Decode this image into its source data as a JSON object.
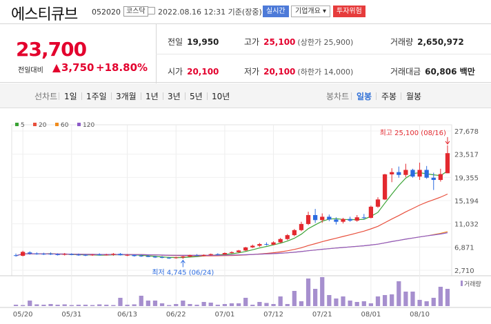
{
  "header": {
    "name": "에스티큐브",
    "code": "052020",
    "market": "코스닥",
    "datetime": "2022.08.16 12:31 기준(장중)",
    "realtime_label": "실시간",
    "company_label": "기업개요 ▾",
    "warning_label": "투자위험"
  },
  "quote": {
    "price": "23,700",
    "change_label": "전일대비",
    "change": "3,750",
    "change_pct": "+18.80%",
    "prev_label": "전일",
    "prev": "19,950",
    "high_label": "고가",
    "high": "25,100",
    "upper_limit": "(상한가 25,900)",
    "volume_label": "거래량",
    "volume": "2,650,972",
    "open_label": "시가",
    "open": "20,100",
    "low_label": "저가",
    "low": "20,100",
    "lower_limit": "(하한가 14,000)",
    "amount_label": "거래대금",
    "amount": "60,806 백만"
  },
  "tabs": {
    "line_label": "선차트",
    "periods": [
      "1일",
      "1주일",
      "3개월",
      "1년",
      "3년",
      "5년",
      "10년"
    ],
    "candle_label": "봉차트",
    "candle_periods": [
      "일봉",
      "주봉",
      "월봉"
    ],
    "selected": "일봉"
  },
  "chart_data": {
    "type": "candlestick",
    "legend": [
      {
        "name": "5",
        "color": "#3aa335"
      },
      {
        "name": "20",
        "color": "#e84f3c"
      },
      {
        "name": "60",
        "color": "#f08c1e"
      },
      {
        "name": "120",
        "color": "#8c5ac8"
      }
    ],
    "y_ticks": [
      "27,678",
      "23,517",
      "19,355",
      "15,194",
      "11,032",
      "6,871",
      "2,710"
    ],
    "ylim": [
      2710,
      27678
    ],
    "x_labels": [
      {
        "label": "05/20",
        "idx": 1
      },
      {
        "label": "05/31",
        "idx": 8
      },
      {
        "label": "06/13",
        "idx": 16
      },
      {
        "label": "06/22",
        "idx": 23
      },
      {
        "label": "07/01",
        "idx": 30
      },
      {
        "label": "07/12",
        "idx": 37
      },
      {
        "label": "07/21",
        "idx": 44
      },
      {
        "label": "08/01",
        "idx": 51
      },
      {
        "label": "08/10",
        "idx": 58
      }
    ],
    "annotations": {
      "high": {
        "text": "최고 25,100 (08/16)",
        "idx": 62,
        "value": 25100
      },
      "low": {
        "text": "최저 4,745 (06/24)",
        "idx": 24,
        "value": 4745
      }
    },
    "volume_label": "거래량",
    "candles": [
      {
        "o": 5400,
        "h": 5700,
        "l": 5150,
        "c": 5300
      },
      {
        "o": 5300,
        "h": 6200,
        "l": 5200,
        "c": 6000
      },
      {
        "o": 5900,
        "h": 6100,
        "l": 5500,
        "c": 5700
      },
      {
        "o": 5700,
        "h": 5900,
        "l": 5500,
        "c": 5650
      },
      {
        "o": 5650,
        "h": 5850,
        "l": 5450,
        "c": 5600
      },
      {
        "o": 5650,
        "h": 5900,
        "l": 5450,
        "c": 5550
      },
      {
        "o": 5550,
        "h": 5750,
        "l": 5350,
        "c": 5500
      },
      {
        "o": 5500,
        "h": 5800,
        "l": 5350,
        "c": 5600
      },
      {
        "o": 5600,
        "h": 5750,
        "l": 5400,
        "c": 5450
      },
      {
        "o": 5500,
        "h": 5700,
        "l": 5300,
        "c": 5400
      },
      {
        "o": 5450,
        "h": 5600,
        "l": 5250,
        "c": 5350
      },
      {
        "o": 5400,
        "h": 5600,
        "l": 5300,
        "c": 5500
      },
      {
        "o": 5550,
        "h": 5750,
        "l": 5350,
        "c": 5400
      },
      {
        "o": 5450,
        "h": 5650,
        "l": 5350,
        "c": 5500
      },
      {
        "o": 5500,
        "h": 5800,
        "l": 5300,
        "c": 5650
      },
      {
        "o": 5650,
        "h": 5800,
        "l": 5350,
        "c": 5400
      },
      {
        "o": 5400,
        "h": 5600,
        "l": 5250,
        "c": 5450
      },
      {
        "o": 5450,
        "h": 5500,
        "l": 5150,
        "c": 5250
      },
      {
        "o": 5300,
        "h": 5500,
        "l": 5100,
        "c": 5200
      },
      {
        "o": 5250,
        "h": 5450,
        "l": 5050,
        "c": 5100
      },
      {
        "o": 5150,
        "h": 5300,
        "l": 4900,
        "c": 5000
      },
      {
        "o": 5050,
        "h": 5250,
        "l": 4850,
        "c": 4950
      },
      {
        "o": 4950,
        "h": 5100,
        "l": 4750,
        "c": 4850
      },
      {
        "o": 4900,
        "h": 5100,
        "l": 4780,
        "c": 5000
      },
      {
        "o": 5000,
        "h": 5250,
        "l": 4745,
        "c": 5150
      },
      {
        "o": 5150,
        "h": 5500,
        "l": 5050,
        "c": 5400
      },
      {
        "o": 5400,
        "h": 5600,
        "l": 5250,
        "c": 5350
      },
      {
        "o": 5350,
        "h": 5550,
        "l": 5200,
        "c": 5450
      },
      {
        "o": 5450,
        "h": 5700,
        "l": 5350,
        "c": 5600
      },
      {
        "o": 5600,
        "h": 5750,
        "l": 5400,
        "c": 5550
      },
      {
        "o": 5550,
        "h": 5900,
        "l": 5500,
        "c": 5800
      },
      {
        "o": 5800,
        "h": 6100,
        "l": 5700,
        "c": 5950
      },
      {
        "o": 5950,
        "h": 6350,
        "l": 5850,
        "c": 6250
      },
      {
        "o": 6250,
        "h": 6900,
        "l": 6150,
        "c": 6800
      },
      {
        "o": 6800,
        "h": 7300,
        "l": 6700,
        "c": 7100
      },
      {
        "o": 7100,
        "h": 7600,
        "l": 6900,
        "c": 7400
      },
      {
        "o": 7400,
        "h": 7700,
        "l": 7150,
        "c": 7300
      },
      {
        "o": 7300,
        "h": 7900,
        "l": 7200,
        "c": 7700
      },
      {
        "o": 7700,
        "h": 8500,
        "l": 7600,
        "c": 8300
      },
      {
        "o": 8300,
        "h": 9200,
        "l": 8100,
        "c": 9000
      },
      {
        "o": 9000,
        "h": 10100,
        "l": 8800,
        "c": 9900
      },
      {
        "o": 9900,
        "h": 11400,
        "l": 9700,
        "c": 11000
      },
      {
        "o": 11000,
        "h": 13200,
        "l": 10800,
        "c": 12600
      },
      {
        "o": 12600,
        "h": 13700,
        "l": 11200,
        "c": 11700
      },
      {
        "o": 11700,
        "h": 12900,
        "l": 11200,
        "c": 12300
      },
      {
        "o": 12300,
        "h": 12700,
        "l": 11500,
        "c": 11800
      },
      {
        "o": 11800,
        "h": 12200,
        "l": 10900,
        "c": 11400
      },
      {
        "o": 11400,
        "h": 12100,
        "l": 11100,
        "c": 11900
      },
      {
        "o": 11900,
        "h": 12300,
        "l": 11400,
        "c": 11600
      },
      {
        "o": 11600,
        "h": 12600,
        "l": 11400,
        "c": 12200
      },
      {
        "o": 12200,
        "h": 12800,
        "l": 11800,
        "c": 12100
      },
      {
        "o": 12100,
        "h": 14300,
        "l": 12000,
        "c": 14100
      },
      {
        "o": 14100,
        "h": 15800,
        "l": 13900,
        "c": 15400
      },
      {
        "o": 15400,
        "h": 20000,
        "l": 15300,
        "c": 19900
      },
      {
        "o": 19900,
        "h": 21000,
        "l": 18500,
        "c": 20300
      },
      {
        "o": 20300,
        "h": 21300,
        "l": 19300,
        "c": 19800
      },
      {
        "o": 19800,
        "h": 21800,
        "l": 19400,
        "c": 20700
      },
      {
        "o": 20700,
        "h": 20900,
        "l": 19300,
        "c": 19500
      },
      {
        "o": 19500,
        "h": 22000,
        "l": 18900,
        "c": 20700
      },
      {
        "o": 20700,
        "h": 21400,
        "l": 19100,
        "c": 19300
      },
      {
        "o": 19300,
        "h": 20200,
        "l": 17100,
        "c": 18900
      },
      {
        "o": 18900,
        "h": 20900,
        "l": 18600,
        "c": 19950
      },
      {
        "o": 20100,
        "h": 25100,
        "l": 20100,
        "c": 23700
      }
    ],
    "volumes": [
      20,
      15,
      80,
      25,
      20,
      30,
      20,
      25,
      15,
      20,
      20,
      15,
      25,
      20,
      15,
      120,
      20,
      25,
      150,
      80,
      80,
      40,
      15,
      30,
      80,
      30,
      20,
      60,
      50,
      20,
      30,
      40,
      40,
      120,
      20,
      60,
      45,
      30,
      140,
      30,
      220,
      70,
      400,
      250,
      420,
      160,
      110,
      140,
      80,
      60,
      70,
      40,
      140,
      160,
      170,
      360,
      210,
      210,
      90,
      70,
      120,
      280,
      250
    ]
  }
}
